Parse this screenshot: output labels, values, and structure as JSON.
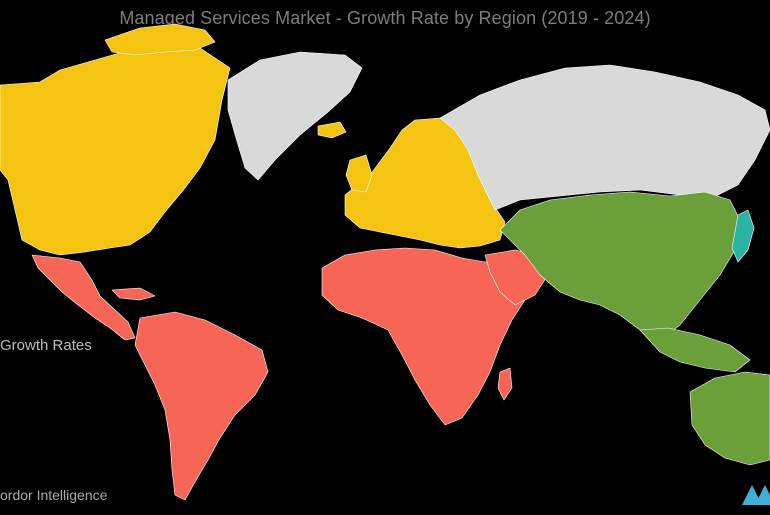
{
  "title": "Managed Services Market  - Growth Rate by Region (2019 - 2024)",
  "legend": {
    "label": "Growth Rates"
  },
  "brand": {
    "name": "ordor Intelligence"
  },
  "colors": {
    "background": "#000000",
    "high_growth": "#6a9f3a",
    "medium_growth": "#f5c413",
    "low_growth": "#f76557",
    "no_data": "#d9d9d9",
    "japan_accent": "#2bb3a3",
    "logo_accent": "#3fb0d8"
  },
  "regions": [
    {
      "name": "north-america",
      "category": "medium_growth"
    },
    {
      "name": "europe",
      "category": "medium_growth"
    },
    {
      "name": "asia-pacific",
      "category": "high_growth"
    },
    {
      "name": "latin-america",
      "category": "low_growth"
    },
    {
      "name": "middle-east-africa",
      "category": "low_growth"
    },
    {
      "name": "russia-greenland",
      "category": "no_data"
    }
  ],
  "icons": {
    "logo": "mordor-intelligence-logo-icon"
  }
}
